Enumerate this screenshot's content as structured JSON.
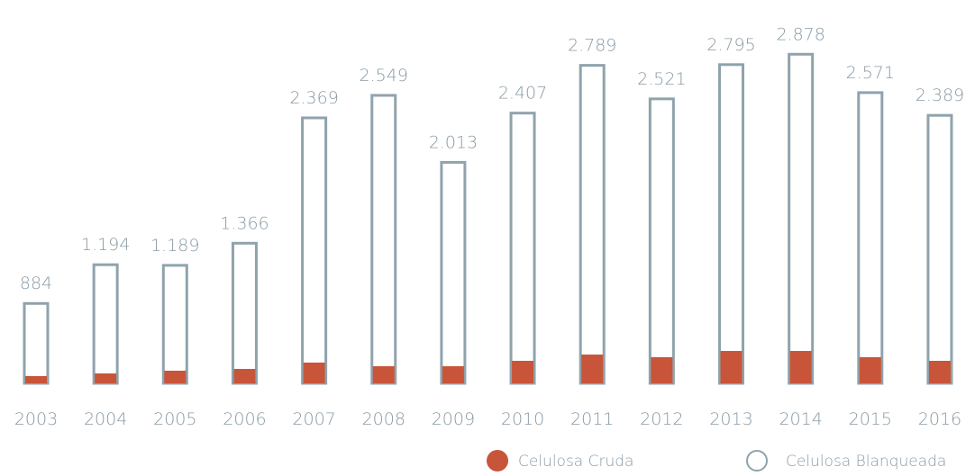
{
  "chart_data": {
    "type": "bar",
    "categories": [
      "2003",
      "2004",
      "2005",
      "2006",
      "2007",
      "2008",
      "2009",
      "2010",
      "2011",
      "2012",
      "2013",
      "2014",
      "2015",
      "2016"
    ],
    "series": [
      {
        "name": "Celulosa Cruda",
        "color": "#c8553a",
        "values": [
          303,
          324,
          346,
          360,
          411,
          382,
          382,
          425,
          475,
          454,
          504,
          504,
          454,
          425
        ]
      },
      {
        "name": "Celulosa Blanqueada",
        "color": "#8fa3ad",
        "values": [
          884,
          1194,
          1189,
          1366,
          2369,
          2549,
          2013,
          2407,
          2789,
          2521,
          2795,
          2878,
          2571,
          2389
        ],
        "value_labels": [
          "884",
          "1.194",
          "1.189",
          "1.366",
          "2.369",
          "2.549",
          "2.013",
          "2.407",
          "2.789",
          "2.521",
          "2.795",
          "2.878",
          "2.571",
          "2.389"
        ]
      }
    ],
    "ylim": [
      245,
      2880
    ]
  }
}
